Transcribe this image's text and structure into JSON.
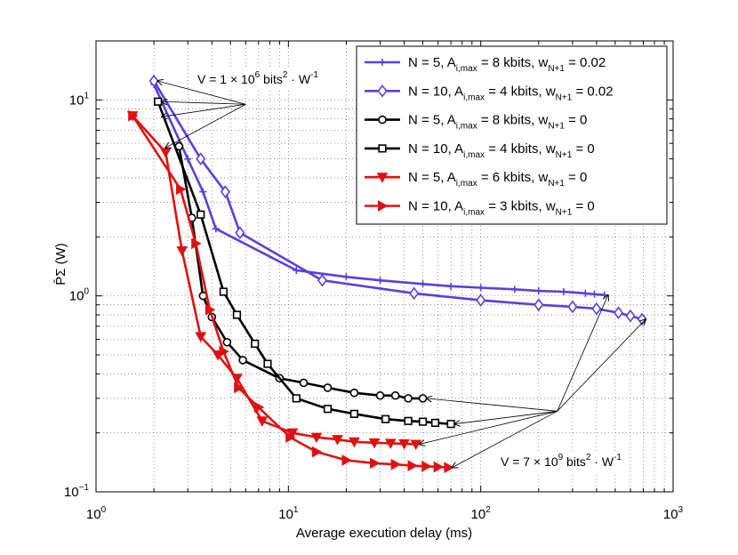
{
  "chart_data": {
    "type": "line",
    "xscale": "log",
    "yscale": "log",
    "xlim": [
      1,
      1000
    ],
    "ylim": [
      0.1,
      20
    ],
    "grid": true,
    "xlabel": "Average execution delay (ms)",
    "ylabel": "P̄Σ (W)",
    "x_ticks": [
      {
        "base": "10",
        "exp": "0"
      },
      {
        "base": "10",
        "exp": "1"
      },
      {
        "base": "10",
        "exp": "2"
      },
      {
        "base": "10",
        "exp": "3"
      }
    ],
    "y_ticks": [
      {
        "value": 0.1,
        "base": "10",
        "exp": "−1"
      },
      {
        "value": 1,
        "base": "10",
        "exp": "0"
      },
      {
        "value": 10,
        "base": "10",
        "exp": "1"
      }
    ],
    "legend_position": "top-right",
    "series": [
      {
        "name": "N = 5, A_i,max = 8 kbits, w_N+1 = 0.02",
        "legend": {
          "pre": "N = 5, A",
          "sub1": "i,max",
          "mid": " = 8 kbits, w",
          "sub2": "N+1",
          "post": " = 0.02"
        },
        "color": "#5b3fdc",
        "marker": "plus",
        "x": [
          2.0,
          3.0,
          3.6,
          4.2,
          11.0,
          20.0,
          30.0,
          50.0,
          70.0,
          100.0,
          150.0,
          200.0,
          270.0,
          350.0,
          390.0,
          440.0
        ],
        "y": [
          12.0,
          5.0,
          3.4,
          2.2,
          1.35,
          1.25,
          1.2,
          1.15,
          1.12,
          1.1,
          1.08,
          1.06,
          1.05,
          1.03,
          1.02,
          1.01
        ]
      },
      {
        "name": "N = 10, A_i,max = 4 kbits, w_N+1 = 0.02",
        "legend": {
          "pre": "N = 10, A",
          "sub1": "i,max",
          "mid": " = 4 kbits, w",
          "sub2": "N+1",
          "post": " = 0.02"
        },
        "color": "#5b3fdc",
        "marker": "diamond",
        "x": [
          2.0,
          3.5,
          4.7,
          5.6,
          15.0,
          45.0,
          100.0,
          200.0,
          300.0,
          400.0,
          520.0,
          600.0,
          690.0
        ],
        "y": [
          12.5,
          5.0,
          3.4,
          2.1,
          1.2,
          1.03,
          0.95,
          0.9,
          0.88,
          0.86,
          0.82,
          0.79,
          0.76
        ]
      },
      {
        "name": "N = 5, A_i,max = 8 kbits, w_N+1 = 0",
        "legend": {
          "pre": "N = 5, A",
          "sub1": "i,max",
          "mid": " = 8 kbits, w",
          "sub2": "N+1",
          "post": " = 0"
        },
        "color": "#000000",
        "marker": "circle",
        "x": [
          2.7,
          3.15,
          3.6,
          4.0,
          4.8,
          5.8,
          9.0,
          12.0,
          16.0,
          22.0,
          30.0,
          36.0,
          42.0,
          50.0
        ],
        "y": [
          5.8,
          2.5,
          1.0,
          0.78,
          0.58,
          0.47,
          0.38,
          0.36,
          0.34,
          0.32,
          0.31,
          0.31,
          0.3,
          0.3
        ]
      },
      {
        "name": "N = 10, A_i,max = 4 kbits, w_N+1 = 0",
        "legend": {
          "pre": "N = 10, A",
          "sub1": "i,max",
          "mid": " = 4 kbits, w",
          "sub2": "N+1",
          "post": " = 0"
        },
        "color": "#000000",
        "marker": "square",
        "x": [
          2.1,
          3.5,
          4.6,
          5.4,
          6.7,
          7.8,
          11.0,
          16.0,
          22.0,
          32.0,
          42.0,
          50.0,
          58.0,
          70.0
        ],
        "y": [
          9.8,
          2.6,
          1.05,
          0.8,
          0.57,
          0.45,
          0.3,
          0.265,
          0.25,
          0.235,
          0.23,
          0.228,
          0.225,
          0.222
        ]
      },
      {
        "name": "N = 5, A_i,max = 6 kbits, w_N+1 = 0",
        "legend": {
          "pre": "N = 5, A",
          "sub1": "i,max",
          "mid": " = 6 kbits, w",
          "sub2": "N+1",
          "post": " = 0"
        },
        "color": "#e01010",
        "marker": "triangle-down",
        "x": [
          1.55,
          2.3,
          2.8,
          3.5,
          4.3,
          5.4,
          7.3,
          10.5,
          14.0,
          18.0,
          22.0,
          28.0,
          34.0,
          40.0,
          46.0
        ],
        "y": [
          8.3,
          5.4,
          1.7,
          0.62,
          0.5,
          0.38,
          0.23,
          0.2,
          0.19,
          0.185,
          0.18,
          0.178,
          0.177,
          0.176,
          0.175
        ]
      },
      {
        "name": "N = 10, A_i,max = 3 kbits, w_N+1 = 0",
        "legend": {
          "pre": "N = 10, A",
          "sub1": "i,max",
          "mid": " = 3 kbits, w",
          "sub2": "N+1",
          "post": " = 0"
        },
        "color": "#e01010",
        "marker": "triangle-right",
        "x": [
          1.55,
          2.75,
          3.3,
          3.9,
          4.6,
          5.5,
          7.0,
          10.2,
          14.0,
          20.0,
          28.0,
          36.0,
          44.0,
          52.0,
          60.0,
          68.0
        ],
        "y": [
          8.3,
          3.5,
          1.85,
          0.85,
          0.52,
          0.34,
          0.27,
          0.19,
          0.16,
          0.145,
          0.14,
          0.138,
          0.136,
          0.135,
          0.134,
          0.133
        ]
      }
    ],
    "annotations": {
      "top": {
        "pre": "V = 1 × 10",
        "sup1": "6",
        "mid": " bits",
        "sup2": "2",
        "mid2": " · W",
        "sup3": "-1",
        "origin": [
          6.0,
          9.5
        ],
        "targets": [
          [
            2.0,
            12.5
          ],
          [
            2.1,
            9.8
          ],
          [
            2.1,
            8.2
          ],
          [
            2.2,
            5.7
          ]
        ]
      },
      "bottom": {
        "pre": "V = 7 × 10",
        "sup1": "9",
        "mid": " bits",
        "sup2": "2",
        "mid2": " · W",
        "sup3": "-1",
        "origin": [
          250.0,
          0.258
        ],
        "targets": [
          [
            440.0,
            1.01
          ],
          [
            690.0,
            0.76
          ],
          [
            50.0,
            0.3
          ],
          [
            70.0,
            0.222
          ],
          [
            46.0,
            0.175
          ],
          [
            68.0,
            0.133
          ]
        ]
      }
    }
  }
}
